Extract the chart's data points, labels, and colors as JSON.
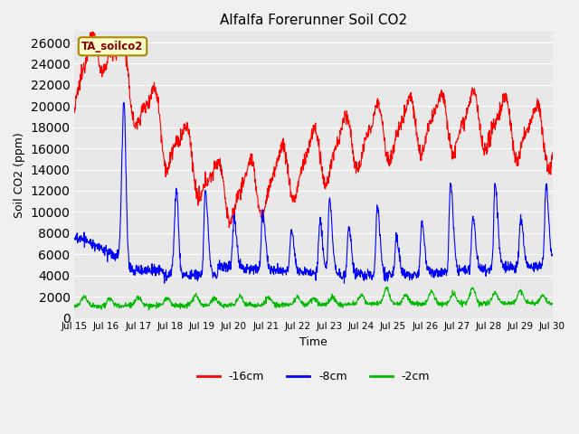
{
  "title": "Alfalfa Forerunner Soil CO2",
  "xlabel": "Time",
  "ylabel": "Soil CO2 (ppm)",
  "ylim": [
    0,
    27000
  ],
  "yticks": [
    0,
    2000,
    4000,
    6000,
    8000,
    10000,
    12000,
    14000,
    16000,
    18000,
    20000,
    22000,
    24000,
    26000
  ],
  "n_points": 1500,
  "days": 15,
  "colors": {
    "red": "#ff0000",
    "blue": "#0000ff",
    "green": "#00bb00"
  },
  "legend_labels": [
    "-16cm",
    "-8cm",
    "-2cm"
  ],
  "box_label": "TA_soilco2",
  "box_color": "#ffffcc",
  "box_edge_color": "#aa8800",
  "bg_color": "#e8e8e8",
  "grid_color": "#ffffff",
  "xtick_labels": [
    "Jul 15",
    "Jul 16",
    "Jul 17",
    "Jul 18",
    "Jul 19",
    "Jul 20",
    "Jul 21",
    "Jul 22",
    "Jul 23",
    "Jul 24",
    "Jul 25",
    "Jul 26",
    "Jul 27",
    "Jul 28",
    "Jul 29",
    "Jul 30"
  ],
  "figsize": [
    6.4,
    4.8
  ],
  "dpi": 100
}
